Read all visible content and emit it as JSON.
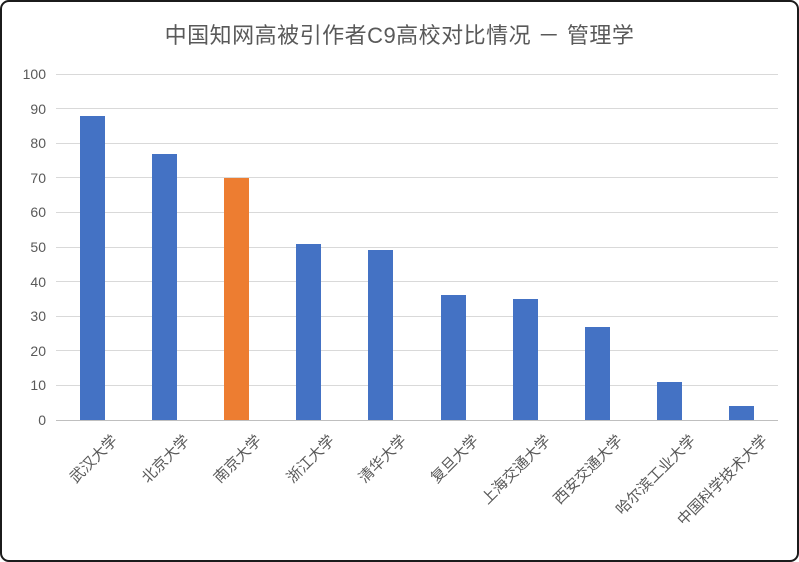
{
  "chart_data": {
    "type": "bar",
    "title": "中国知网高被引作者C9高校对比情况 － 管理学",
    "categories": [
      "武汉大学",
      "北京大学",
      "南京大学",
      "浙江大学",
      "清华大学",
      "复旦大学",
      "上海交通大学",
      "西安交通大学",
      "哈尔滨工业大学",
      "中国科学技术大学"
    ],
    "values": [
      88,
      77,
      70,
      51,
      49,
      36,
      35,
      27,
      11,
      4
    ],
    "highlight_index": 2,
    "highlight_category": "南京大学",
    "xlabel": "",
    "ylabel": "",
    "ylim": [
      0,
      100
    ],
    "ytick_step": 10,
    "yticks": [
      0,
      10,
      20,
      30,
      40,
      50,
      60,
      70,
      80,
      90,
      100
    ],
    "grid": true,
    "legend": false,
    "colors": {
      "bar_default": "#4472C4",
      "bar_highlight": "#ED7D31",
      "gridline": "#D9D9D9",
      "baseline": "#BFBFBF",
      "title_text": "#595959",
      "tick_text": "#595959"
    }
  }
}
